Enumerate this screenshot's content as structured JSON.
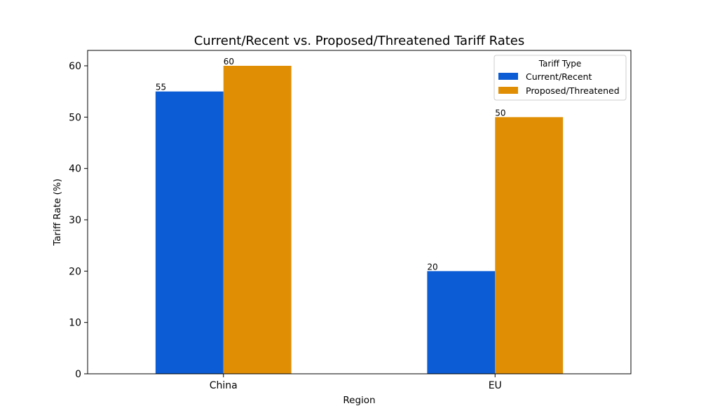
{
  "chart_data": {
    "type": "bar",
    "title": "Current/Recent vs. Proposed/Threatened Tariff Rates",
    "xlabel": "Region",
    "ylabel": "Tariff Rate (%)",
    "categories": [
      "China",
      "EU"
    ],
    "series": [
      {
        "name": "Current/Recent",
        "values": [
          55,
          20
        ],
        "color": "#0b5cd5"
      },
      {
        "name": "Proposed/Threatened",
        "values": [
          60,
          50
        ],
        "color": "#e08f05"
      }
    ],
    "ylim": [
      0,
      63
    ],
    "yticks": [
      0,
      10,
      20,
      30,
      40,
      50,
      60
    ],
    "legend": {
      "title": "Tariff Type",
      "position": "top-right"
    },
    "grid": false
  }
}
